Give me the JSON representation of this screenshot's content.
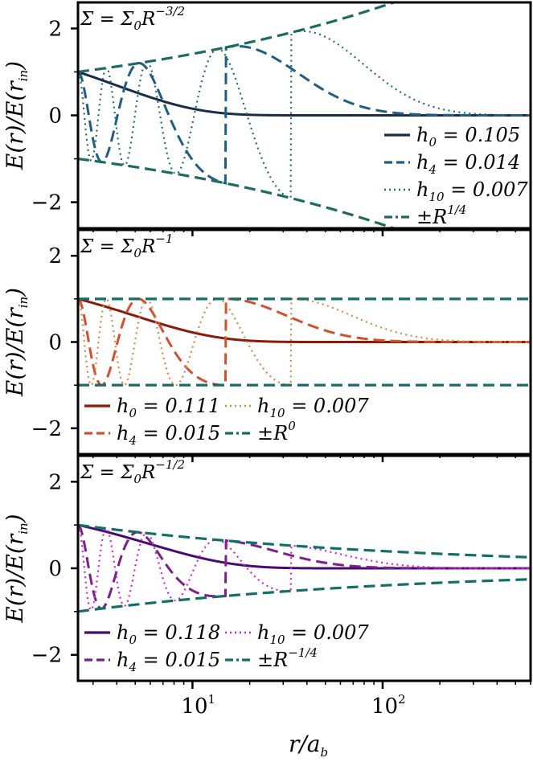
{
  "figure": {
    "ylabel": "E(r)/E(r_in)",
    "xlabel": "r/a_b"
  },
  "chart_data": [
    {
      "type": "line",
      "panel_title": "Σ = Σ0R^(-3/2)",
      "x_scale": "log",
      "xlim": [
        2.5,
        600
      ],
      "ylim": [
        -2.6,
        2.6
      ],
      "yticks": [
        -2,
        0,
        2
      ],
      "xticks": [
        "10^1",
        "10^2"
      ],
      "envelope_exponent": 0.25,
      "decay_length": 4.0,
      "legend_position": "right-middle",
      "legend_columns": 1,
      "series": [
        {
          "name": "h0 = 0.105",
          "label_main": "h",
          "label_sub": "0",
          "label_value": " = 0.105",
          "style": "solid",
          "color": "#1b2b4b",
          "cycles": 0
        },
        {
          "name": "h4 = 0.014",
          "label_main": "h",
          "label_sub": "4",
          "label_value": " = 0.014",
          "style": "dashed",
          "color": "#1f5d86",
          "cycles": 1.5
        },
        {
          "name": "h10 = 0.007",
          "label_main": "h",
          "label_sub": "10",
          "label_value": " = 0.007",
          "style": "dotted",
          "color": "#1f6e5e",
          "cycles": 3.5
        },
        {
          "name": "±R^(1/4)",
          "label_main": "±R",
          "label_sup": "1/4",
          "style": "dashdot",
          "color": "#1d6b5f"
        }
      ]
    },
    {
      "type": "line",
      "panel_title": "Σ = Σ0R^(-1)",
      "x_scale": "log",
      "xlim": [
        2.5,
        600
      ],
      "ylim": [
        -2.6,
        2.6
      ],
      "yticks": [
        -2,
        0,
        2
      ],
      "xticks": [
        "10^1",
        "10^2"
      ],
      "envelope_exponent": 0,
      "decay_length": 5.0,
      "legend_position": "bottom-left",
      "legend_columns": 2,
      "series": [
        {
          "name": "h0 = 0.111",
          "label_main": "h",
          "label_sub": "0",
          "label_value": " = 0.111",
          "style": "solid",
          "color": "#8b1a0a",
          "cycles": 0
        },
        {
          "name": "h4 = 0.015",
          "label_main": "h",
          "label_sub": "4",
          "label_value": " = 0.015",
          "style": "dashed",
          "color": "#d0502f",
          "cycles": 1.5
        },
        {
          "name": "h10 = 0.007",
          "label_main": "h",
          "label_sub": "10",
          "label_value": " = 0.007",
          "style": "dotted",
          "color": "#df8440",
          "cycles": 3.5
        },
        {
          "name": "±R^0",
          "label_main": "±R",
          "label_sup": "0",
          "style": "dashdot",
          "color": "#146e68"
        }
      ]
    },
    {
      "type": "line",
      "panel_title": "Σ = Σ0R^(-1/2)",
      "x_scale": "log",
      "xlim": [
        2.5,
        600
      ],
      "ylim": [
        -2.6,
        2.6
      ],
      "yticks": [
        -2,
        0,
        2
      ],
      "xticks": [
        "10^1",
        "10^2"
      ],
      "envelope_exponent": -0.25,
      "decay_length": 6.0,
      "legend_position": "bottom-left",
      "legend_columns": 2,
      "series": [
        {
          "name": "h0 = 0.118",
          "label_main": "h",
          "label_sub": "0",
          "label_value": " = 0.118",
          "style": "solid",
          "color": "#4a0a72",
          "cycles": 0
        },
        {
          "name": "h4 = 0.015",
          "label_main": "h",
          "label_sub": "4",
          "label_value": " = 0.015",
          "style": "dashed",
          "color": "#7b1f8a",
          "cycles": 1.5
        },
        {
          "name": "h10 = 0.007",
          "label_main": "h",
          "label_sub": "10",
          "label_value": " = 0.007",
          "style": "dotted",
          "color": "#d61fd0",
          "cycles": 3.5
        },
        {
          "name": "±R^(-1/4)",
          "label_main": "±R",
          "label_sup": "−1/4",
          "style": "dashdot",
          "color": "#146e68"
        }
      ]
    }
  ]
}
